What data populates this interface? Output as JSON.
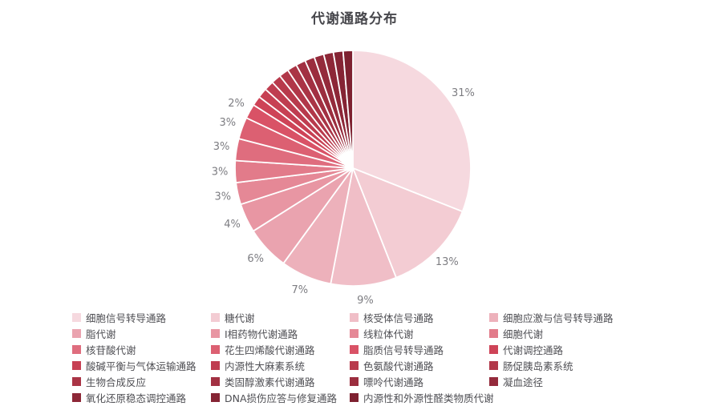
{
  "page": {
    "background_color": "#ffffff"
  },
  "chart_data": {
    "type": "pie",
    "title": "代谢通路分布",
    "title_color": "#47474c",
    "percent_label_color": "#7d7d82",
    "legend_text_color": "#4f4f54",
    "slice_stroke_color": "#ffffff",
    "start_angle_deg": 90,
    "direction": "clockwise",
    "legend": {
      "position": "bottom",
      "columns": 4
    },
    "slices": [
      {
        "label": "细胞信号转导通路",
        "value": 31,
        "pct_label": "31%",
        "color": "#f6d9df"
      },
      {
        "label": "糖代谢",
        "value": 13,
        "pct_label": "13%",
        "color": "#f3ccd3"
      },
      {
        "label": "核受体信号通路",
        "value": 9,
        "pct_label": "9%",
        "color": "#f0bec7"
      },
      {
        "label": "细胞应激与信号转导通路",
        "value": 7,
        "pct_label": "7%",
        "color": "#edb1bb"
      },
      {
        "label": "脂代谢",
        "value": 6,
        "pct_label": "6%",
        "color": "#eaa3af"
      },
      {
        "label": "I相药物代谢通路",
        "value": 4,
        "pct_label": "4%",
        "color": "#e896a3"
      },
      {
        "label": "线粒体代谢",
        "value": 3,
        "pct_label": "3%",
        "color": "#e58896"
      },
      {
        "label": "细胞代谢",
        "value": 3,
        "pct_label": "3%",
        "color": "#e27b8a"
      },
      {
        "label": "核苷酸代谢",
        "value": 3,
        "pct_label": "3%",
        "color": "#df6d7e"
      },
      {
        "label": "花生四烯酸代谢通路",
        "value": 3,
        "pct_label": "3%",
        "color": "#dc6072"
      },
      {
        "label": "脂质信号转导通路",
        "value": 2,
        "pct_label": "2%",
        "color": "#d95266"
      },
      {
        "label": "代谢调控通路",
        "value": 1.33,
        "pct_label": "",
        "color": "#ce4357"
      },
      {
        "label": "酸碱平衡与气体运输通路",
        "value": 1.33,
        "pct_label": "",
        "color": "#c74053"
      },
      {
        "label": "内源性大麻素系统",
        "value": 1.33,
        "pct_label": "",
        "color": "#bf3d50"
      },
      {
        "label": "色氨酸代谢通路",
        "value": 1.33,
        "pct_label": "",
        "color": "#b83a4c"
      },
      {
        "label": "肠促胰岛素系统",
        "value": 1.33,
        "pct_label": "",
        "color": "#b13749"
      },
      {
        "label": "生物合成反应",
        "value": 1.33,
        "pct_label": "",
        "color": "#aa3445"
      },
      {
        "label": "类固醇激素代谢通路",
        "value": 1.33,
        "pct_label": "",
        "color": "#a23042"
      },
      {
        "label": "嘌呤代谢通路",
        "value": 1.33,
        "pct_label": "",
        "color": "#9b2d3e"
      },
      {
        "label": "凝血途径",
        "value": 1.33,
        "pct_label": "",
        "color": "#942a3b"
      },
      {
        "label": "氧化还原稳态调控通路",
        "value": 1.33,
        "pct_label": "",
        "color": "#8d2737"
      },
      {
        "label": "DNA损伤应答与修复通路",
        "value": 1.33,
        "pct_label": "",
        "color": "#852434"
      },
      {
        "label": "内源性和外源性醛类物质代谢",
        "value": 1.33,
        "pct_label": "",
        "color": "#7e2130"
      }
    ]
  }
}
